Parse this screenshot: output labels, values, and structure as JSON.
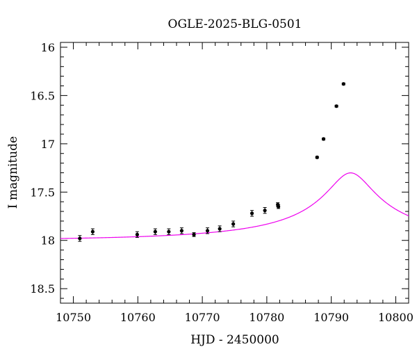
{
  "chart_data": {
    "type": "scatter",
    "title": "OGLE-2025-BLG-0501",
    "xlabel": "HJD - 2450000",
    "ylabel": "I magnitude",
    "xlim": [
      10748,
      10802
    ],
    "ylim": [
      18.65,
      15.95
    ],
    "y_inverted": true,
    "x_ticks": [
      10750,
      10760,
      10770,
      10780,
      10790,
      10800
    ],
    "x_tick_labels": [
      "10750",
      "10760",
      "10770",
      "10780",
      "10790",
      "10800"
    ],
    "y_ticks": [
      16,
      16.5,
      17,
      17.5,
      18,
      18.5
    ],
    "y_tick_labels": [
      "16",
      "16.5",
      "17",
      "17.5",
      "18",
      "18.5"
    ],
    "grid": false,
    "colors": {
      "model": "#ee00ee",
      "points": "#000000"
    },
    "series": [
      {
        "kind": "points_with_errors",
        "points": [
          {
            "x": 10751.0,
            "y": 17.98,
            "err": 0.03
          },
          {
            "x": 10753.0,
            "y": 17.91,
            "err": 0.03
          },
          {
            "x": 10759.9,
            "y": 17.94,
            "err": 0.03
          },
          {
            "x": 10762.7,
            "y": 17.91,
            "err": 0.03
          },
          {
            "x": 10764.8,
            "y": 17.91,
            "err": 0.03
          },
          {
            "x": 10766.8,
            "y": 17.9,
            "err": 0.03
          },
          {
            "x": 10768.7,
            "y": 17.94,
            "err": 0.02
          },
          {
            "x": 10770.8,
            "y": 17.9,
            "err": 0.03
          },
          {
            "x": 10772.7,
            "y": 17.88,
            "err": 0.03
          },
          {
            "x": 10774.8,
            "y": 17.83,
            "err": 0.03
          },
          {
            "x": 10777.7,
            "y": 17.72,
            "err": 0.03
          },
          {
            "x": 10779.7,
            "y": 17.69,
            "err": 0.03
          },
          {
            "x": 10781.7,
            "y": 17.63,
            "err": 0.02
          },
          {
            "x": 10781.8,
            "y": 17.65,
            "err": 0.02
          },
          {
            "x": 10787.8,
            "y": 17.14,
            "err": 0.01
          },
          {
            "x": 10788.8,
            "y": 16.95,
            "err": 0.01
          },
          {
            "x": 10790.8,
            "y": 16.61,
            "err": 0.01
          },
          {
            "x": 10791.9,
            "y": 16.38,
            "err": 0.01
          }
        ]
      },
      {
        "kind": "model_curve",
        "model": {
          "t0": 10793.0,
          "u0": 0.1,
          "tE": 34.0,
          "I0": 18.0,
          "fs": 0.1
        }
      }
    ]
  }
}
